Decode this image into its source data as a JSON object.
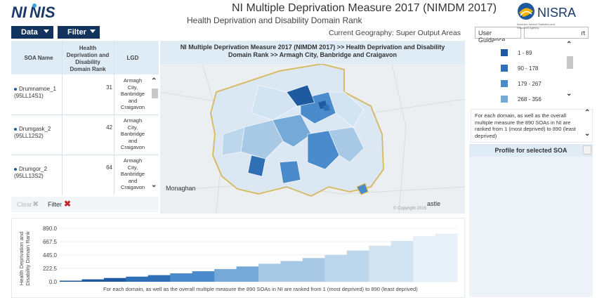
{
  "header": {
    "logo_left_text": "NINIS",
    "title": "NI Multiple Deprivation Measure 2017 (NIMDM 2017)",
    "subtitle": "Health Deprivation and Disability Domain Rank",
    "logo_right_text": "NISRA",
    "logo_right_small": "Northern Ireland Statistics and Research Agency"
  },
  "toolbar": {
    "data_label": "Data",
    "filter_label": "Filter",
    "geography": "Current Geography: Super Output Areas",
    "user_guidance": "User Guidance",
    "report_fragment": "rt"
  },
  "table": {
    "columns": [
      "SOA Name",
      "Health Deprivation and Disability Domain Rank",
      "LGD"
    ],
    "rows": [
      {
        "name": "Drumnamoe_1",
        "code": "(95LL14S1)",
        "rank": "31",
        "lgd": [
          "Armagh",
          "City,",
          "Banbridge",
          "and",
          "Craigavon"
        ]
      },
      {
        "name": "Drumgask_2",
        "code": "(95LL12S2)",
        "rank": "42",
        "lgd": [
          "Armagh",
          "City,",
          "Banbridge",
          "and",
          "Craigavon"
        ]
      },
      {
        "name": "Drumgor_2",
        "code": "(95LL13S2)",
        "rank": "64",
        "lgd": [
          "Armagh",
          "City,",
          "Banbridge",
          "and",
          "Craigavon"
        ]
      }
    ],
    "clear_label": "Clear",
    "filter_label": "Filter"
  },
  "map": {
    "title_line1": "NI Multiple Deprivation Measure 2017 (NIMDM 2017) >>  Health Deprivation and Disability",
    "title_line2": "Domain Rank  >>  Armagh City, Banbridge and Craigavon",
    "label_monaghan": "Monaghan",
    "label_castle": "astle",
    "copyright": "© Copyright 2016"
  },
  "legend": {
    "items": [
      {
        "label": "1 - 89",
        "color": "#1f5aa0"
      },
      {
        "label": "90 - 178",
        "color": "#2e6fb5"
      },
      {
        "label": "179 - 267",
        "color": "#4a8ccb"
      },
      {
        "label": "268 - 356",
        "color": "#74a9d8"
      }
    ]
  },
  "info": {
    "text": "For each domain, as well as the overall multiple measure the 890 SOAs in NI are ranked from 1 (most deprived) to 890 (least deprived)"
  },
  "profile": {
    "label": "Profile for selected SOA"
  },
  "chart_data": {
    "type": "bar",
    "ylabel": "Health Deprivation and Disability Domain Rank",
    "xlabel": "",
    "yticks": [
      "890.0",
      "667.5",
      "445.0",
      "222.5",
      "0.0"
    ],
    "ylim": [
      0,
      890
    ],
    "caption": "For each domain, as well as the overall multiple measure the 890 SOAs in NI are ranked from 1 (most deprived) to 890 (least deprived)",
    "series": [
      {
        "values": [
          18,
          40,
          62,
          85,
          110,
          140,
          175,
          210,
          255,
          300,
          345,
          395,
          450,
          520,
          600,
          680,
          760,
          800
        ]
      }
    ],
    "band_colors": [
      "#1f5aa0",
      "#2e6fb5",
      "#4a8ccb",
      "#74a9d8",
      "#a7c9e6",
      "#bcd6ec",
      "#d2e3f1",
      "#e7f0f8"
    ]
  }
}
